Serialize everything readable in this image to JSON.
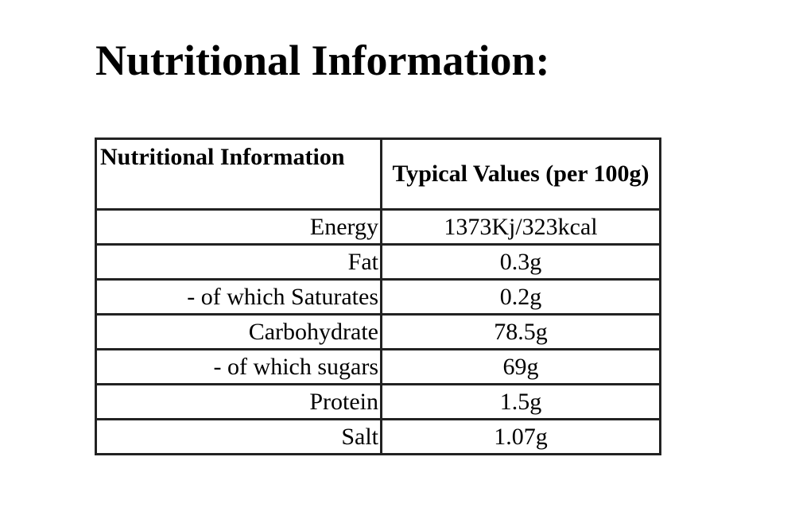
{
  "header": {
    "title": "Nutritional Information:"
  },
  "table": {
    "columns": [
      "Nutritional Information",
      "Typical Values (per 100g)"
    ],
    "rows": [
      [
        "Energy",
        "1373Kj/323kcal"
      ],
      [
        "Fat",
        "0.3g"
      ],
      [
        "- of which Saturates",
        "0.2g"
      ],
      [
        "Carbohydrate",
        "78.5g"
      ],
      [
        "- of which sugars",
        "69g"
      ],
      [
        "Protein",
        "1.5g"
      ],
      [
        "Salt",
        "1.07g"
      ]
    ]
  }
}
